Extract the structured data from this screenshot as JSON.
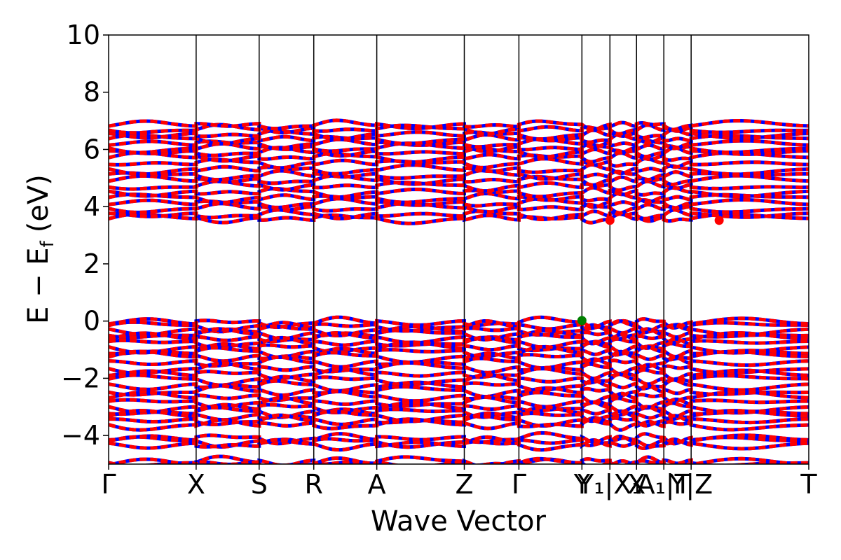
{
  "chart_data": {
    "type": "line",
    "title": "",
    "xlabel": "Wave Vector",
    "ylabel": "E − E_f (eV)",
    "ylabel_parts": {
      "main": "E − E",
      "sub": "f",
      "unit": "(eV)"
    },
    "ylim": [
      -5,
      10
    ],
    "yticks": [
      -4,
      -2,
      0,
      2,
      4,
      6,
      8,
      10
    ],
    "ytick_labels": [
      "−4",
      "−2",
      "0",
      "2",
      "4",
      "6",
      "8",
      "10"
    ],
    "xlim": [
      0,
      1
    ],
    "kpath_ticks": [
      {
        "x": 0.0,
        "label": "Γ"
      },
      {
        "x": 0.125,
        "label": "X"
      },
      {
        "x": 0.215,
        "label": "S"
      },
      {
        "x": 0.293,
        "label": "R"
      },
      {
        "x": 0.383,
        "label": "A"
      },
      {
        "x": 0.508,
        "label": "Z"
      },
      {
        "x": 0.586,
        "label": "Γ"
      },
      {
        "x": 0.676,
        "label": "Y"
      },
      {
        "x": 0.716,
        "label": "Y₁|X₁"
      },
      {
        "x": 0.754,
        "label": "X"
      },
      {
        "x": 0.793,
        "label": "A₁|T"
      },
      {
        "x": 0.832,
        "label": "Y|Z"
      },
      {
        "x": 1.0,
        "label": "T"
      }
    ],
    "grid": false,
    "legend": "none",
    "colors": {
      "band_up": "#ff0000",
      "band_down": "#0000ff",
      "cbm": "#ff0000",
      "vbm": "#008000"
    },
    "band_energies": {
      "conduction": [
        3.58,
        3.72,
        3.95,
        4.12,
        4.3,
        4.5,
        4.72,
        4.92,
        5.1,
        5.3,
        5.52,
        5.72,
        5.9,
        6.05,
        6.2,
        6.36,
        6.52,
        6.7,
        6.85
      ],
      "valence": [
        -0.05,
        -0.18,
        -0.32,
        -0.46,
        -0.6,
        -0.76,
        -0.92,
        -1.08,
        -1.25,
        -1.45,
        -1.65,
        -1.85,
        -2.05,
        -2.25,
        -2.45,
        -2.65,
        -2.85,
        -3.02,
        -3.18,
        -3.32,
        -3.48,
        -3.62,
        -4.1,
        -4.22,
        -4.32,
        -4.92,
        -4.98
      ]
    },
    "extrema": {
      "cbm": [
        {
          "x": 0.716,
          "y": 3.52
        },
        {
          "x": 0.872,
          "y": 3.52
        }
      ],
      "vbm": [
        {
          "x": 0.676,
          "y": 0.02
        }
      ]
    }
  }
}
